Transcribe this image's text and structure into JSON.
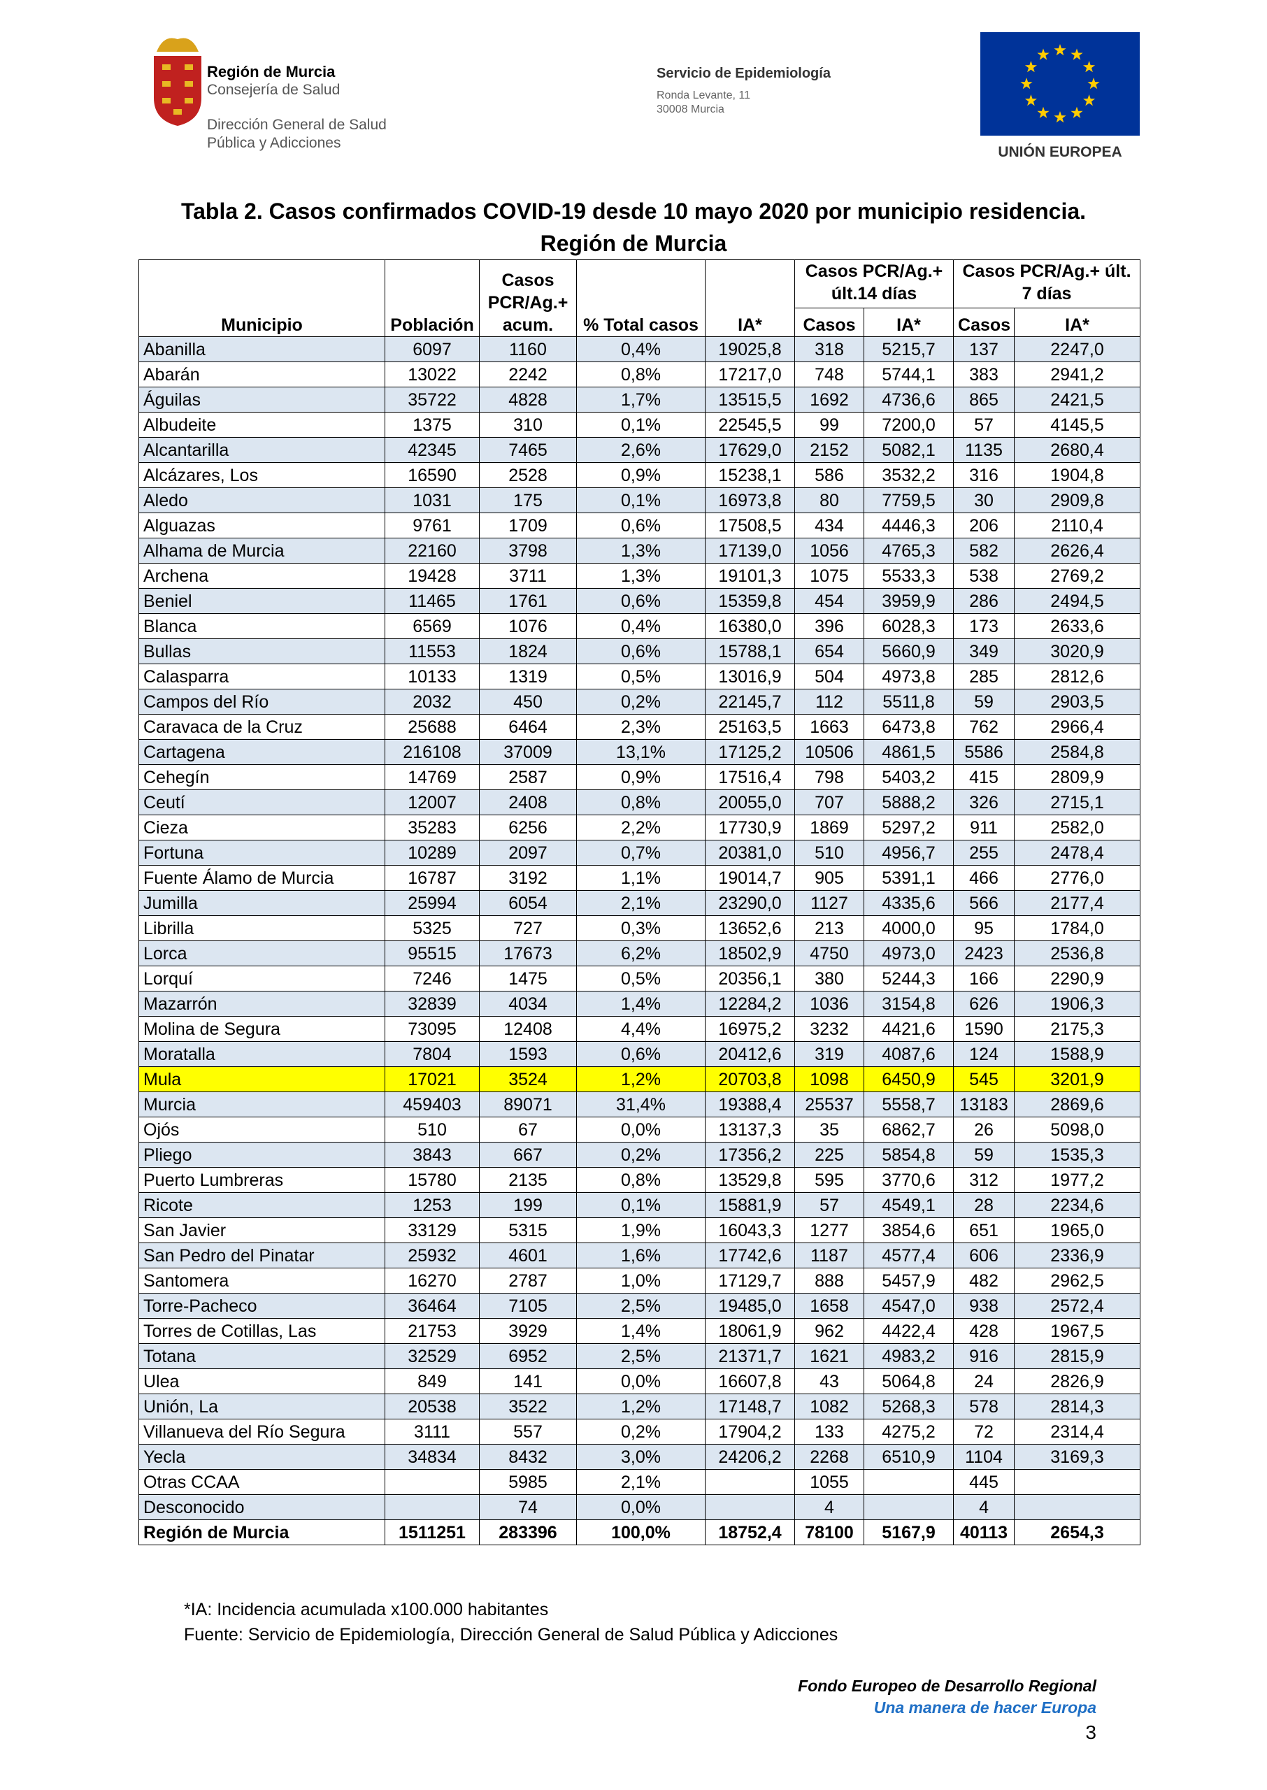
{
  "header": {
    "region": "Región de Murcia",
    "consejeria": "Consejería de Salud",
    "direccion_1": "Dirección General de Salud",
    "direccion_2": "Pública y Adicciones",
    "service": "Servicio de Epidemiología",
    "address_1": "Ronda Levante, 11",
    "address_2": "30008 Murcia",
    "eu": "UNIÓN EUROPEA"
  },
  "title": [
    "Tabla 2. Casos confirmados COVID-19 desde 10 mayo 2020 por municipio residencia.",
    "Región de Murcia"
  ],
  "table": {
    "columns": [
      "Municipio",
      "Población",
      "Casos PCR/Ag.+ acum.",
      "% Total casos",
      "IA*"
    ],
    "groups": [
      "Casos PCR/Ag.+ últ.14 días",
      "Casos PCR/Ag.+ últ. 7 días"
    ],
    "subcolumns": [
      "Casos",
      "IA*",
      "Casos",
      "IA*"
    ],
    "highlight_row": 29,
    "rows": [
      [
        "Abanilla",
        "6097",
        "1160",
        "0,4%",
        "19025,8",
        "318",
        "5215,7",
        "137",
        "2247,0"
      ],
      [
        "Abarán",
        "13022",
        "2242",
        "0,8%",
        "17217,0",
        "748",
        "5744,1",
        "383",
        "2941,2"
      ],
      [
        "Águilas",
        "35722",
        "4828",
        "1,7%",
        "13515,5",
        "1692",
        "4736,6",
        "865",
        "2421,5"
      ],
      [
        "Albudeite",
        "1375",
        "310",
        "0,1%",
        "22545,5",
        "99",
        "7200,0",
        "57",
        "4145,5"
      ],
      [
        "Alcantarilla",
        "42345",
        "7465",
        "2,6%",
        "17629,0",
        "2152",
        "5082,1",
        "1135",
        "2680,4"
      ],
      [
        "Alcázares, Los",
        "16590",
        "2528",
        "0,9%",
        "15238,1",
        "586",
        "3532,2",
        "316",
        "1904,8"
      ],
      [
        "Aledo",
        "1031",
        "175",
        "0,1%",
        "16973,8",
        "80",
        "7759,5",
        "30",
        "2909,8"
      ],
      [
        "Alguazas",
        "9761",
        "1709",
        "0,6%",
        "17508,5",
        "434",
        "4446,3",
        "206",
        "2110,4"
      ],
      [
        "Alhama de Murcia",
        "22160",
        "3798",
        "1,3%",
        "17139,0",
        "1056",
        "4765,3",
        "582",
        "2626,4"
      ],
      [
        "Archena",
        "19428",
        "3711",
        "1,3%",
        "19101,3",
        "1075",
        "5533,3",
        "538",
        "2769,2"
      ],
      [
        "Beniel",
        "11465",
        "1761",
        "0,6%",
        "15359,8",
        "454",
        "3959,9",
        "286",
        "2494,5"
      ],
      [
        "Blanca",
        "6569",
        "1076",
        "0,4%",
        "16380,0",
        "396",
        "6028,3",
        "173",
        "2633,6"
      ],
      [
        "Bullas",
        "11553",
        "1824",
        "0,6%",
        "15788,1",
        "654",
        "5660,9",
        "349",
        "3020,9"
      ],
      [
        "Calasparra",
        "10133",
        "1319",
        "0,5%",
        "13016,9",
        "504",
        "4973,8",
        "285",
        "2812,6"
      ],
      [
        "Campos del Río",
        "2032",
        "450",
        "0,2%",
        "22145,7",
        "112",
        "5511,8",
        "59",
        "2903,5"
      ],
      [
        "Caravaca de la Cruz",
        "25688",
        "6464",
        "2,3%",
        "25163,5",
        "1663",
        "6473,8",
        "762",
        "2966,4"
      ],
      [
        "Cartagena",
        "216108",
        "37009",
        "13,1%",
        "17125,2",
        "10506",
        "4861,5",
        "5586",
        "2584,8"
      ],
      [
        "Cehegín",
        "14769",
        "2587",
        "0,9%",
        "17516,4",
        "798",
        "5403,2",
        "415",
        "2809,9"
      ],
      [
        "Ceutí",
        "12007",
        "2408",
        "0,8%",
        "20055,0",
        "707",
        "5888,2",
        "326",
        "2715,1"
      ],
      [
        "Cieza",
        "35283",
        "6256",
        "2,2%",
        "17730,9",
        "1869",
        "5297,2",
        "911",
        "2582,0"
      ],
      [
        "Fortuna",
        "10289",
        "2097",
        "0,7%",
        "20381,0",
        "510",
        "4956,7",
        "255",
        "2478,4"
      ],
      [
        "Fuente Álamo de Murcia",
        "16787",
        "3192",
        "1,1%",
        "19014,7",
        "905",
        "5391,1",
        "466",
        "2776,0"
      ],
      [
        "Jumilla",
        "25994",
        "6054",
        "2,1%",
        "23290,0",
        "1127",
        "4335,6",
        "566",
        "2177,4"
      ],
      [
        "Librilla",
        "5325",
        "727",
        "0,3%",
        "13652,6",
        "213",
        "4000,0",
        "95",
        "1784,0"
      ],
      [
        "Lorca",
        "95515",
        "17673",
        "6,2%",
        "18502,9",
        "4750",
        "4973,0",
        "2423",
        "2536,8"
      ],
      [
        "Lorquí",
        "7246",
        "1475",
        "0,5%",
        "20356,1",
        "380",
        "5244,3",
        "166",
        "2290,9"
      ],
      [
        "Mazarrón",
        "32839",
        "4034",
        "1,4%",
        "12284,2",
        "1036",
        "3154,8",
        "626",
        "1906,3"
      ],
      [
        "Molina de Segura",
        "73095",
        "12408",
        "4,4%",
        "16975,2",
        "3232",
        "4421,6",
        "1590",
        "2175,3"
      ],
      [
        "Moratalla",
        "7804",
        "1593",
        "0,6%",
        "20412,6",
        "319",
        "4087,6",
        "124",
        "1588,9"
      ],
      [
        "Mula",
        "17021",
        "3524",
        "1,2%",
        "20703,8",
        "1098",
        "6450,9",
        "545",
        "3201,9"
      ],
      [
        "Murcia",
        "459403",
        "89071",
        "31,4%",
        "19388,4",
        "25537",
        "5558,7",
        "13183",
        "2869,6"
      ],
      [
        "Ojós",
        "510",
        "67",
        "0,0%",
        "13137,3",
        "35",
        "6862,7",
        "26",
        "5098,0"
      ],
      [
        "Pliego",
        "3843",
        "667",
        "0,2%",
        "17356,2",
        "225",
        "5854,8",
        "59",
        "1535,3"
      ],
      [
        "Puerto Lumbreras",
        "15780",
        "2135",
        "0,8%",
        "13529,8",
        "595",
        "3770,6",
        "312",
        "1977,2"
      ],
      [
        "Ricote",
        "1253",
        "199",
        "0,1%",
        "15881,9",
        "57",
        "4549,1",
        "28",
        "2234,6"
      ],
      [
        "San Javier",
        "33129",
        "5315",
        "1,9%",
        "16043,3",
        "1277",
        "3854,6",
        "651",
        "1965,0"
      ],
      [
        "San Pedro del Pinatar",
        "25932",
        "4601",
        "1,6%",
        "17742,6",
        "1187",
        "4577,4",
        "606",
        "2336,9"
      ],
      [
        "Santomera",
        "16270",
        "2787",
        "1,0%",
        "17129,7",
        "888",
        "5457,9",
        "482",
        "2962,5"
      ],
      [
        "Torre-Pacheco",
        "36464",
        "7105",
        "2,5%",
        "19485,0",
        "1658",
        "4547,0",
        "938",
        "2572,4"
      ],
      [
        "Torres de Cotillas, Las",
        "21753",
        "3929",
        "1,4%",
        "18061,9",
        "962",
        "4422,4",
        "428",
        "1967,5"
      ],
      [
        "Totana",
        "32529",
        "6952",
        "2,5%",
        "21371,7",
        "1621",
        "4983,2",
        "916",
        "2815,9"
      ],
      [
        "Ulea",
        "849",
        "141",
        "0,0%",
        "16607,8",
        "43",
        "5064,8",
        "24",
        "2826,9"
      ],
      [
        "Unión, La",
        "20538",
        "3522",
        "1,2%",
        "17148,7",
        "1082",
        "5268,3",
        "578",
        "2814,3"
      ],
      [
        "Villanueva del Río Segura",
        "3111",
        "557",
        "0,2%",
        "17904,2",
        "133",
        "4275,2",
        "72",
        "2314,4"
      ],
      [
        "Yecla",
        "34834",
        "8432",
        "3,0%",
        "24206,2",
        "2268",
        "6510,9",
        "1104",
        "3169,3"
      ],
      [
        "Otras CCAA",
        null,
        "5985",
        "2,1%",
        null,
        "1055",
        null,
        "445",
        null
      ],
      [
        "Desconocido",
        null,
        "74",
        "0,0%",
        null,
        "4",
        null,
        "4",
        null
      ]
    ],
    "total": [
      "Región de Murcia",
      "1511251",
      "283396",
      "100,0%",
      "18752,4",
      "78100",
      "5167,9",
      "40113",
      "2654,3"
    ]
  },
  "notes": [
    "*IA: Incidencia acumulada x100.000 habitantes",
    "Fuente:  Servicio de Epidemiología, Dirección General de Salud Pública y Adicciones"
  ],
  "footer": {
    "fund": "Fondo Europeo de Desarrollo Regional",
    "motto": "Una manera de hacer Europa",
    "page": "3"
  }
}
